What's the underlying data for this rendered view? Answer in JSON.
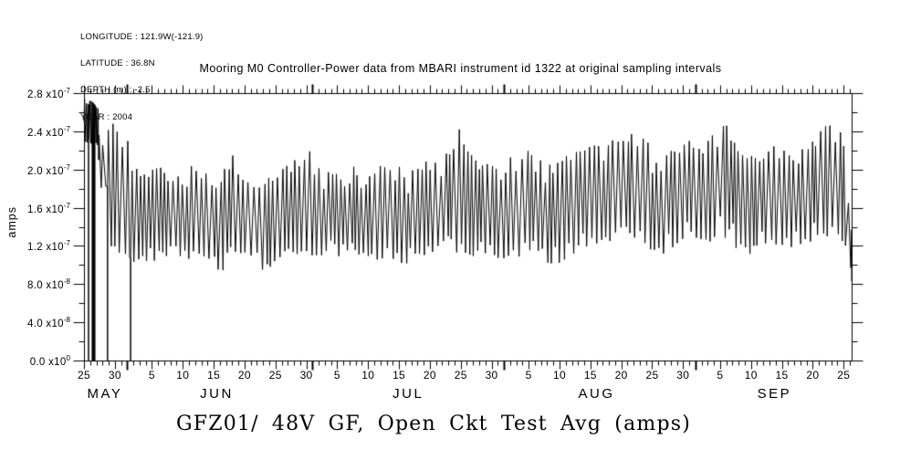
{
  "meta": {
    "lines": [
      "LONGITUDE : 121.9W(-121.9)",
      "LATITUDE : 36.8N",
      "DEPTH (m) : -2.5",
      "YEAR : 2004"
    ]
  },
  "footer_title": "GFZ01/ 48V GF, Open Ckt Test Avg (amps)",
  "chart_data": {
    "type": "line",
    "title": "Mooring M0 Controller-Power data from MBARI instrument id 1322 at original sampling intervals",
    "ylabel": "amps",
    "grid": false,
    "legend": "none",
    "background": "#ffffff",
    "frame_color": "#000000",
    "y_range_e8": [
      0,
      28
    ],
    "y_major_ticks": [
      [
        0,
        "0.0",
        "0"
      ],
      [
        4,
        "4.0",
        "-8"
      ],
      [
        8,
        "8.0",
        "-8"
      ],
      [
        12,
        "1.2",
        "-7"
      ],
      [
        16,
        "1.6",
        "-7"
      ],
      [
        20,
        "2.0",
        "-7"
      ],
      [
        24,
        "2.4",
        "-7"
      ],
      [
        28,
        "2.8",
        "-7"
      ]
    ],
    "y_minor_ticks_e8": [
      2,
      6,
      10,
      14,
      18,
      22,
      26
    ],
    "x_range_days": [
      0,
      124.3
    ],
    "x_start": "2004 May 25",
    "x_minor_tick_every_days": 1,
    "x_major_ticks": [
      [
        0,
        "25"
      ],
      [
        5,
        "30"
      ],
      [
        11,
        "5"
      ],
      [
        16,
        "10"
      ],
      [
        21,
        "15"
      ],
      [
        26,
        "20"
      ],
      [
        31,
        "25"
      ],
      [
        36,
        "30"
      ],
      [
        41,
        "5"
      ],
      [
        46,
        "10"
      ],
      [
        51,
        "15"
      ],
      [
        56,
        "20"
      ],
      [
        61,
        "25"
      ],
      [
        66,
        "30"
      ],
      [
        72,
        "5"
      ],
      [
        77,
        "10"
      ],
      [
        82,
        "15"
      ],
      [
        87,
        "20"
      ],
      [
        92,
        "25"
      ],
      [
        97,
        "30"
      ],
      [
        103,
        "5"
      ],
      [
        108,
        "10"
      ],
      [
        113,
        "15"
      ],
      [
        118,
        "20"
      ],
      [
        123,
        "25"
      ]
    ],
    "x_month_boundary_days": [
      7,
      37,
      68,
      99
    ],
    "months": [
      [
        "MAY",
        3.4
      ],
      [
        "JUN",
        21.5
      ],
      [
        "JUL",
        52.5
      ],
      [
        "AUG",
        83.0
      ],
      [
        "SEP",
        111.8
      ]
    ],
    "series": {
      "name": "GFZ01/ 48V GF, Open Ckt Test Avg",
      "units": "amps",
      "value_scale": "1e-8",
      "color": "#000000",
      "envelope_e8": [
        [
          0,
          23,
          27.5
        ],
        [
          1.3,
          22.5,
          27.2
        ],
        [
          2.3,
          22.5,
          26.5
        ],
        [
          2.5,
          18,
          23
        ],
        [
          3.7,
          18,
          23
        ],
        [
          4,
          11.5,
          25.5
        ],
        [
          5.5,
          11,
          24.5
        ],
        [
          7,
          11,
          24
        ],
        [
          8,
          10.3,
          20.5
        ],
        [
          10,
          10.3,
          19.5
        ],
        [
          12,
          10.5,
          20.5
        ],
        [
          14,
          11,
          19
        ],
        [
          16,
          10.8,
          19.5
        ],
        [
          18,
          10.5,
          21
        ],
        [
          20,
          10.8,
          19.5
        ],
        [
          22,
          9,
          19
        ],
        [
          24,
          10.8,
          21.8
        ],
        [
          26,
          10.8,
          19
        ],
        [
          28,
          10.5,
          19.5
        ],
        [
          29.5,
          8.8,
          19
        ],
        [
          31,
          10.5,
          19.5
        ],
        [
          33,
          11,
          20.5
        ],
        [
          35,
          11,
          21.5
        ],
        [
          36.5,
          10.8,
          22
        ],
        [
          38,
          11,
          20.5
        ],
        [
          40,
          10.8,
          19.5
        ],
        [
          42,
          11,
          20
        ],
        [
          44,
          10.5,
          20.5
        ],
        [
          46,
          10.8,
          19.8
        ],
        [
          48,
          10.5,
          20.5
        ],
        [
          50,
          10.5,
          21
        ],
        [
          52,
          9.8,
          20
        ],
        [
          54,
          10.5,
          20.5
        ],
        [
          56,
          10.8,
          21
        ],
        [
          58,
          11,
          21.5
        ],
        [
          60,
          11,
          22.5
        ],
        [
          60.7,
          11.5,
          24.5
        ],
        [
          62,
          11,
          22
        ],
        [
          64,
          10.8,
          21
        ],
        [
          66,
          11,
          20.5
        ],
        [
          68,
          10.5,
          21
        ],
        [
          70,
          11,
          21.5
        ],
        [
          72,
          10.5,
          22
        ],
        [
          74,
          10.8,
          21
        ],
        [
          76,
          9.8,
          20.5
        ],
        [
          78,
          10.5,
          21.5
        ],
        [
          80,
          11.5,
          22
        ],
        [
          82,
          12,
          22.5
        ],
        [
          84,
          12.5,
          23
        ],
        [
          86,
          12.5,
          24
        ],
        [
          88,
          13,
          24.5
        ],
        [
          90,
          12.5,
          23.5
        ],
        [
          92,
          11.5,
          22.5
        ],
        [
          94,
          11,
          22
        ],
        [
          96,
          12,
          22.5
        ],
        [
          98,
          12.5,
          23
        ],
        [
          100,
          12,
          22
        ],
        [
          102,
          12.5,
          24
        ],
        [
          103.3,
          13,
          26.5
        ],
        [
          104.5,
          12.5,
          24
        ],
        [
          106,
          11.5,
          22
        ],
        [
          108,
          11,
          21.5
        ],
        [
          110,
          11.5,
          22
        ],
        [
          112,
          12,
          22.5
        ],
        [
          114,
          11.5,
          22
        ],
        [
          116,
          12,
          22
        ],
        [
          118,
          12.5,
          23.5
        ],
        [
          120,
          13,
          24.5
        ],
        [
          121.5,
          13,
          25
        ],
        [
          122.5,
          12.5,
          24
        ],
        [
          123.5,
          11.5,
          21
        ],
        [
          124.3,
          8.3,
          14
        ]
      ],
      "dropouts_days": [
        0.74,
        1.35,
        1.45,
        1.55,
        1.65,
        1.75,
        3.82,
        7.55
      ],
      "last_point": {
        "day": 124.3,
        "value_e8": 8.3
      }
    },
    "render": {
      "seed": 12,
      "half_step_min": 0.22,
      "half_step_rand": 0.3,
      "dense_until_day": 2.4,
      "dense_factor": 0.32
    }
  }
}
